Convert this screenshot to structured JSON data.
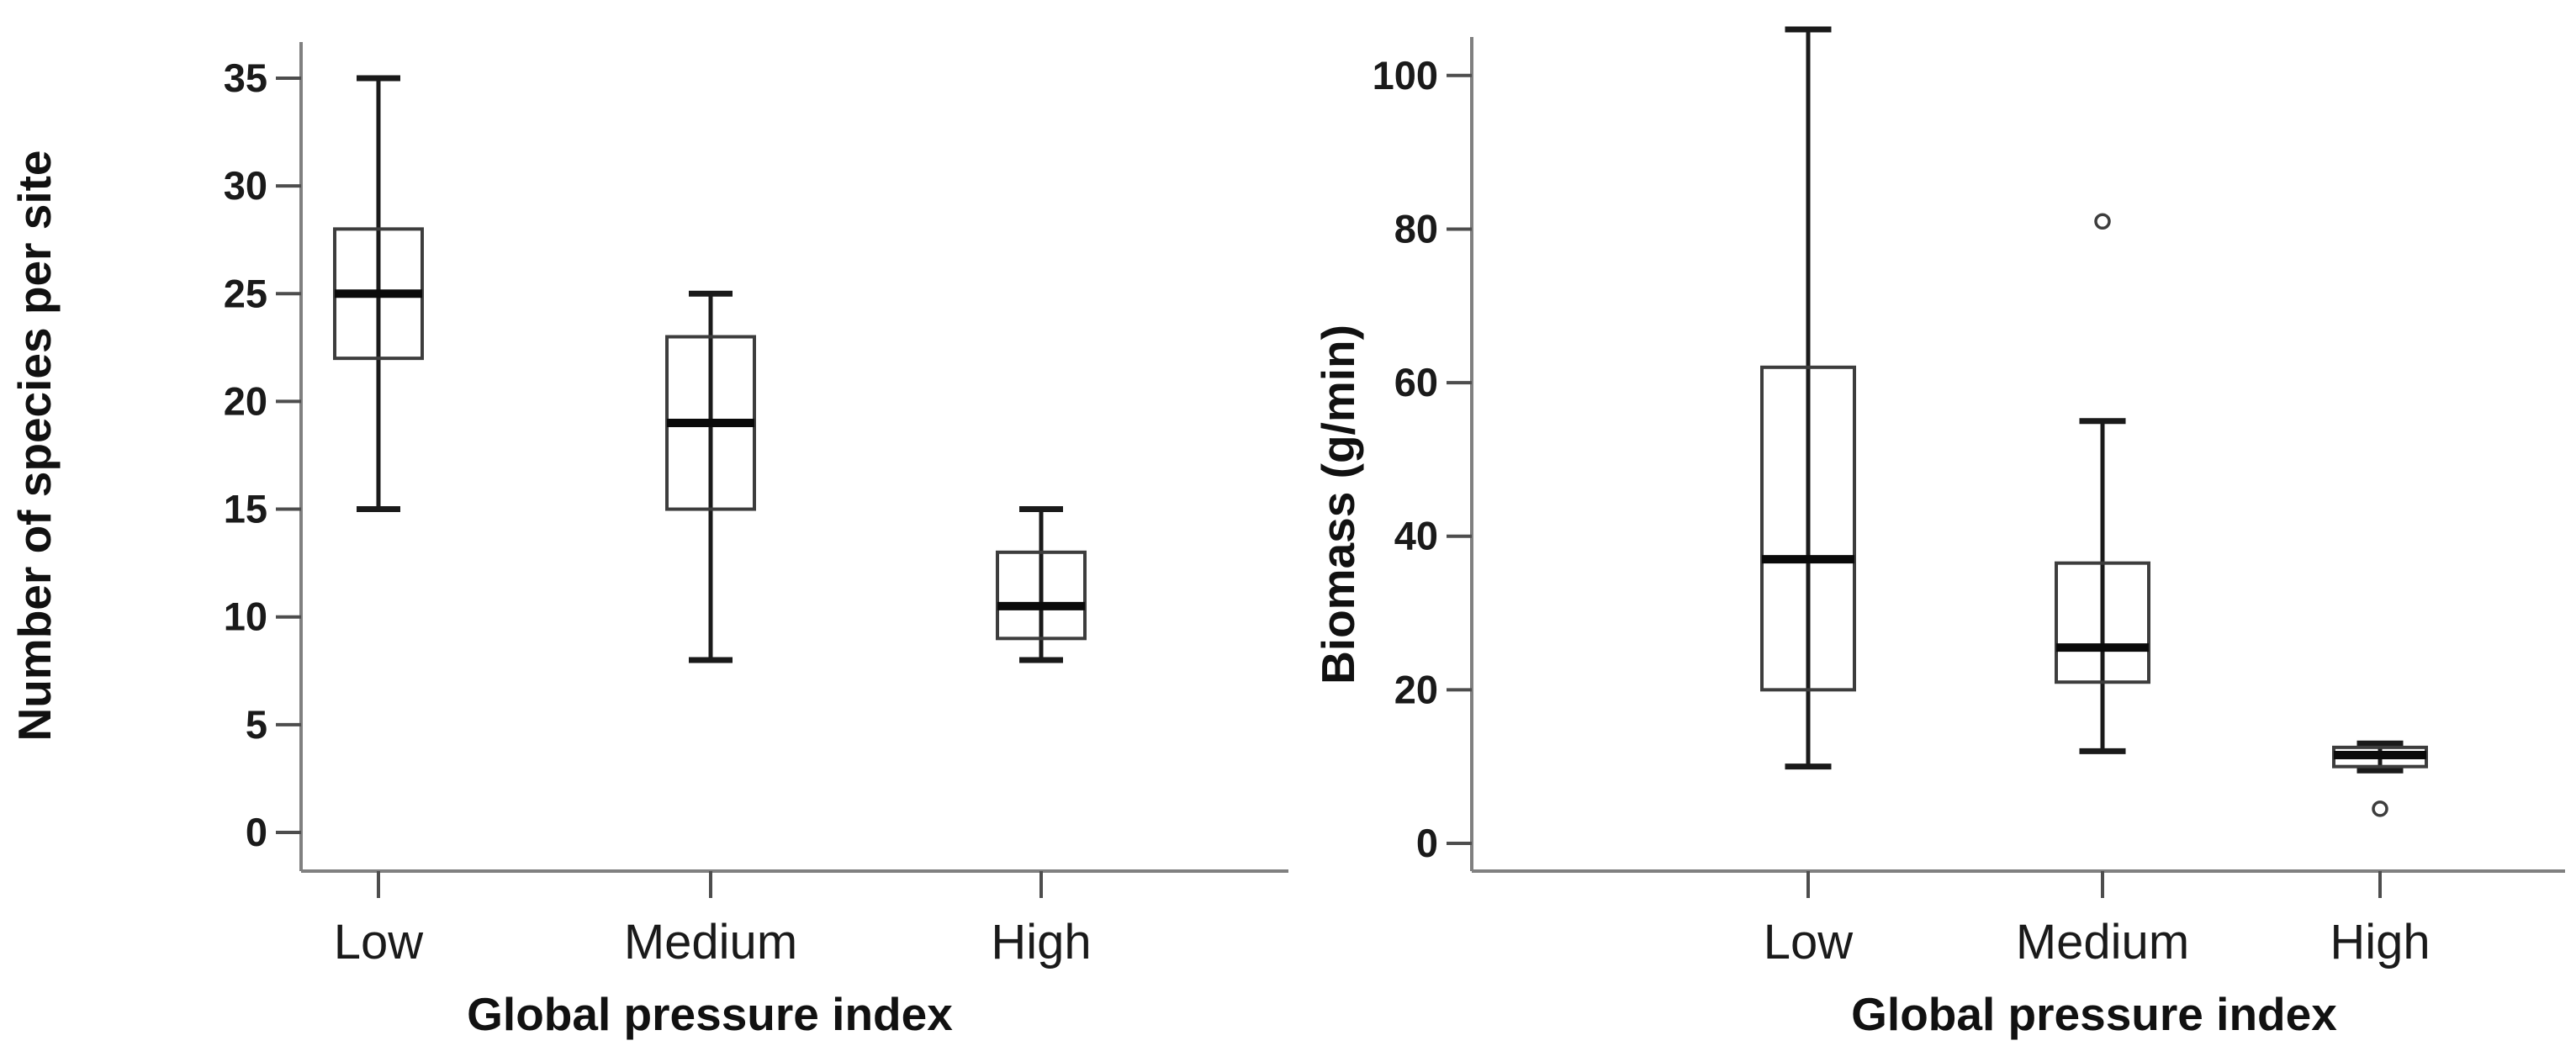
{
  "figure_title": "",
  "chart_data": [
    {
      "type": "box",
      "panel": "left",
      "title": "",
      "xlabel": "Global pressure index",
      "ylabel": "Number of species per site",
      "categories": [
        "Low",
        "Medium",
        "High"
      ],
      "ylim": [
        -2.2,
        37.6
      ],
      "yticks": [
        0,
        5,
        10,
        15,
        20,
        25,
        30,
        35
      ],
      "grid": "off",
      "legend": "none",
      "series": [
        {
          "category": "Low",
          "whisker_low": 15,
          "q1": 22,
          "median": 25,
          "q3": 28,
          "whisker_high": 35,
          "outliers": []
        },
        {
          "category": "Medium",
          "whisker_low": 8,
          "q1": 15,
          "median": 19,
          "q3": 23,
          "whisker_high": 25,
          "outliers": []
        },
        {
          "category": "High",
          "whisker_low": 8,
          "q1": 9,
          "median": 10.5,
          "q3": 13,
          "whisker_high": 15,
          "outliers": []
        }
      ]
    },
    {
      "type": "box",
      "panel": "right",
      "title": "",
      "xlabel": "Global pressure index",
      "ylabel": "Biomass (g/min)",
      "categories": [
        "Low",
        "Medium",
        "High"
      ],
      "ylim": [
        -4,
        110
      ],
      "yticks": [
        0,
        20,
        40,
        60,
        80,
        100
      ],
      "grid": "off",
      "legend": "none",
      "series": [
        {
          "category": "Low",
          "whisker_low": 10,
          "q1": 20,
          "median": 37,
          "q3": 62,
          "whisker_high": 106,
          "outliers": []
        },
        {
          "category": "Medium",
          "whisker_low": 12,
          "q1": 21,
          "median": 25.5,
          "q3": 36.5,
          "whisker_high": 55,
          "outliers": [
            81
          ]
        },
        {
          "category": "High",
          "whisker_low": 9.5,
          "q1": 10,
          "median": 11.5,
          "q3": 12.5,
          "whisker_high": 13,
          "outliers": [
            4.5
          ]
        }
      ]
    }
  ],
  "style_colors": {
    "axis_line": "#808080",
    "tick_mark": "#4d4d4d",
    "box_border": "#3d3d3d",
    "median_line": "#0a0a0a",
    "whisker_line": "#1a1a1a",
    "outlier_stroke": "#3d3d3d",
    "text": "#1a1a1a",
    "background": "#ffffff"
  }
}
